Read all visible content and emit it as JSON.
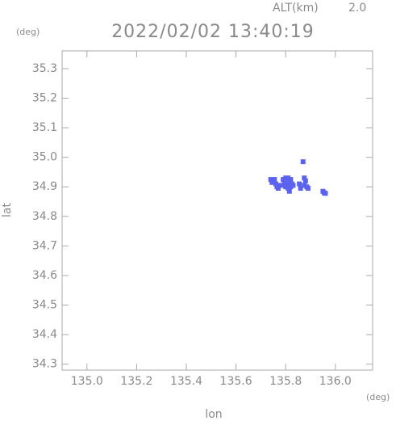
{
  "chart_data": {
    "type": "scatter",
    "title": "2022/02/02 13:40:19",
    "alt_label": "ALT(km)",
    "alt_value": "2.0",
    "y_unit": "(deg)",
    "x_unit": "(deg)",
    "xlabel": "lon",
    "ylabel": "lat",
    "xlim": [
      134.9,
      136.15
    ],
    "ylim": [
      34.28,
      35.36
    ],
    "xticks": [
      {
        "value": 135,
        "label": "135.0"
      },
      135.2,
      135.4,
      135.6,
      135.8,
      {
        "value": 136,
        "label": "136.0"
      }
    ],
    "yticks": [
      34.3,
      34.4,
      34.5,
      34.6,
      34.7,
      34.8,
      34.9,
      {
        "value": 35,
        "label": "35.0"
      },
      35.1,
      35.2,
      35.3
    ],
    "color": "#5a62ee",
    "x": [
      135.74,
      135.75,
      135.745,
      135.76,
      135.765,
      135.77,
      135.755,
      135.775,
      135.79,
      135.8,
      135.81,
      135.82,
      135.795,
      135.805,
      135.815,
      135.825,
      135.8,
      135.81,
      135.82,
      135.83,
      135.815,
      135.785,
      135.87,
      135.855,
      135.86,
      135.875,
      135.88,
      135.875,
      135.885,
      135.89,
      135.95,
      135.955,
      135.96
    ],
    "values": [
      34.925,
      34.92,
      34.915,
      34.91,
      34.9,
      34.895,
      34.925,
      34.905,
      34.925,
      34.93,
      34.93,
      34.925,
      34.915,
      34.91,
      34.915,
      34.91,
      34.9,
      34.895,
      34.9,
      34.905,
      34.885,
      34.905,
      34.985,
      34.91,
      34.895,
      34.93,
      34.92,
      34.905,
      34.9,
      34.895,
      34.885,
      34.88,
      34.878
    ]
  }
}
